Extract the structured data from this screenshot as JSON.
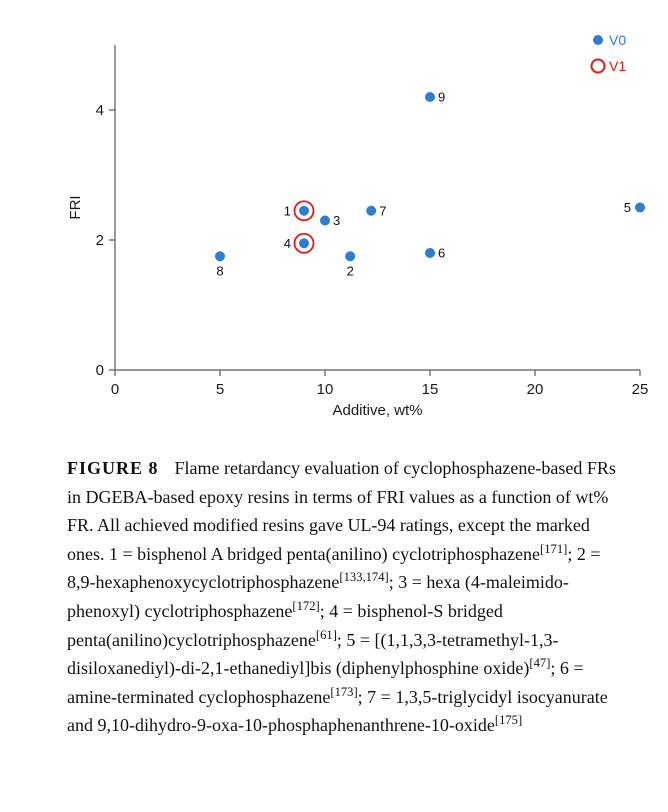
{
  "figure": {
    "legend": [
      {
        "label": "V0",
        "marker": "filled",
        "color": "#2d7dd2"
      },
      {
        "label": "V1",
        "marker": "open",
        "color": "#e8160c"
      }
    ],
    "caption": {
      "label": "FIGURE 8",
      "segments": [
        {
          "text": "Flame retardancy evaluation of cyclophosphazene-based FRs in DGEBA-based epoxy resins in terms of FRI values as a function of wt% FR. All achieved modified resins gave UL-94 ratings, except the marked ones. 1 = bisphenol A bridged penta(anilino) cyclotriphosphazene"
        },
        {
          "text": "[171]",
          "sup": true
        },
        {
          "text": "; 2 = 8,9-hexaphenoxycyclotriphosphazene"
        },
        {
          "text": "[133,174]",
          "sup": true
        },
        {
          "text": "; 3 = hexa (4-maleimido-phenoxyl) cyclotriphosphazene"
        },
        {
          "text": "[172]",
          "sup": true
        },
        {
          "text": "; 4 = bisphenol-S bridged penta(anilino)cyclotriphosphazene"
        },
        {
          "text": "[61]",
          "sup": true
        },
        {
          "text": "; 5 = [(1,1,3,3-tetramethyl-1,3-disiloxanediyl)-di-2,1-ethanediyl]bis (diphenylphosphine oxide)"
        },
        {
          "text": "[47]",
          "sup": true
        },
        {
          "text": "; 6 = amine-terminated cyclophosphazene"
        },
        {
          "text": "[173]",
          "sup": true
        },
        {
          "text": "; 7 = 1,3,5-triglycidyl isocyanurate and 9,10-dihydro-9-oxa-10-phosphaphenanthrene-10-oxide"
        },
        {
          "text": "[175]",
          "sup": true
        }
      ]
    }
  },
  "chart_data": {
    "type": "scatter",
    "title": "",
    "xlabel": "Additive, wt%",
    "ylabel": "FRI",
    "xlim": [
      0,
      25
    ],
    "ylim": [
      0,
      5
    ],
    "xticks": [
      0,
      5,
      10,
      15,
      20,
      25
    ],
    "yticks": [
      0,
      2,
      4
    ],
    "grid": false,
    "legend_position": "top-right",
    "axis_color": "#595959",
    "v1_marker_color": "#e8160c",
    "series": [
      {
        "name": "V0",
        "marker": "filled-circle",
        "color": "#2d7dd2",
        "points": [
          {
            "id": "1",
            "x": 9,
            "y": 2.45,
            "marked_v1": true,
            "label_pos": "left"
          },
          {
            "id": "2",
            "x": 11.2,
            "y": 1.75,
            "marked_v1": false,
            "label_pos": "below"
          },
          {
            "id": "3",
            "x": 10,
            "y": 2.3,
            "marked_v1": false,
            "label_pos": "right"
          },
          {
            "id": "4",
            "x": 9,
            "y": 1.95,
            "marked_v1": true,
            "label_pos": "left"
          },
          {
            "id": "5",
            "x": 25,
            "y": 2.5,
            "marked_v1": false,
            "label_pos": "left"
          },
          {
            "id": "6",
            "x": 15,
            "y": 1.8,
            "marked_v1": false,
            "label_pos": "right"
          },
          {
            "id": "7",
            "x": 12.2,
            "y": 2.45,
            "marked_v1": false,
            "label_pos": "right"
          },
          {
            "id": "8",
            "x": 5,
            "y": 1.75,
            "marked_v1": false,
            "label_pos": "below"
          },
          {
            "id": "9",
            "x": 15,
            "y": 4.2,
            "marked_v1": false,
            "label_pos": "right"
          }
        ]
      }
    ]
  }
}
